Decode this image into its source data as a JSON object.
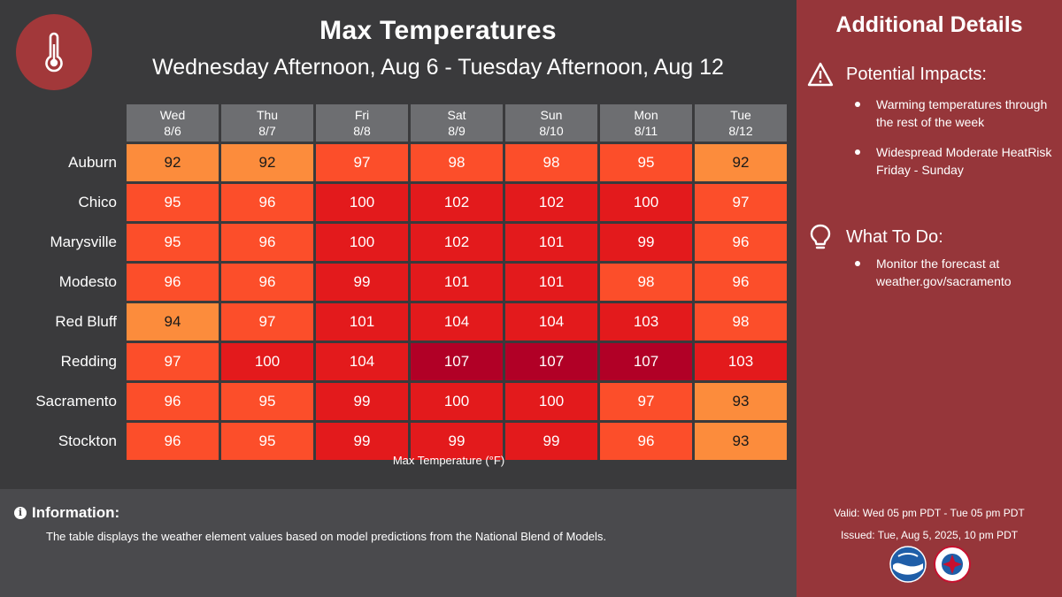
{
  "header": {
    "title": "Max Temperatures",
    "subtitle": "Wednesday Afternoon, Aug 6 - Tuesday Afternoon, Aug 12",
    "icon": "thermometer-icon"
  },
  "table": {
    "days": [
      {
        "name": "Wed",
        "date": "8/6"
      },
      {
        "name": "Thu",
        "date": "8/7"
      },
      {
        "name": "Fri",
        "date": "8/8"
      },
      {
        "name": "Sat",
        "date": "8/9"
      },
      {
        "name": "Sun",
        "date": "8/10"
      },
      {
        "name": "Mon",
        "date": "8/11"
      },
      {
        "name": "Tue",
        "date": "8/12"
      }
    ],
    "rows": [
      {
        "city": "Auburn",
        "values": [
          "92",
          "92",
          "97",
          "98",
          "98",
          "95",
          "92"
        ]
      },
      {
        "city": "Chico",
        "values": [
          "95",
          "96",
          "100",
          "102",
          "102",
          "100",
          "97"
        ]
      },
      {
        "city": "Marysville",
        "values": [
          "95",
          "96",
          "100",
          "102",
          "101",
          "99",
          "96"
        ]
      },
      {
        "city": "Modesto",
        "values": [
          "96",
          "96",
          "99",
          "101",
          "101",
          "98",
          "96"
        ]
      },
      {
        "city": "Red Bluff",
        "values": [
          "94",
          "97",
          "101",
          "104",
          "104",
          "103",
          "98"
        ]
      },
      {
        "city": "Redding",
        "values": [
          "97",
          "100",
          "104",
          "107",
          "107",
          "107",
          "103"
        ]
      },
      {
        "city": "Sacramento",
        "values": [
          "96",
          "95",
          "99",
          "100",
          "100",
          "97",
          "93"
        ]
      },
      {
        "city": "Stockton",
        "values": [
          "96",
          "95",
          "99",
          "99",
          "99",
          "96",
          "93"
        ]
      }
    ],
    "axis_label": "Max Temperature (°F)",
    "colors": {
      "low": "#fc8c3c",
      "mid": "#fc4e2a",
      "high": "#e31a1c",
      "extreme": "#b10026"
    }
  },
  "info": {
    "heading": "Information:",
    "text": "The table displays the weather element values based on model predictions from the National Blend of Models."
  },
  "details": {
    "title": "Additional Details",
    "impacts": {
      "heading": "Potential Impacts:",
      "items": [
        "Warming temperatures through the rest of the week",
        "Widespread Moderate HeatRisk Friday - Sunday"
      ]
    },
    "todo": {
      "heading": "What To Do:",
      "items": [
        "Monitor the forecast at weather.gov/sacramento"
      ]
    },
    "valid": "Valid: Wed 05 pm PDT - Tue 05 pm PDT",
    "issued": "Issued: Tue, Aug 5, 2025, 10 pm PDT"
  },
  "colors": {
    "background": "#3a3a3c",
    "info_bar": "#4a4a4d",
    "side_panel": "#96363a",
    "header_cell": "#6d6e71"
  }
}
